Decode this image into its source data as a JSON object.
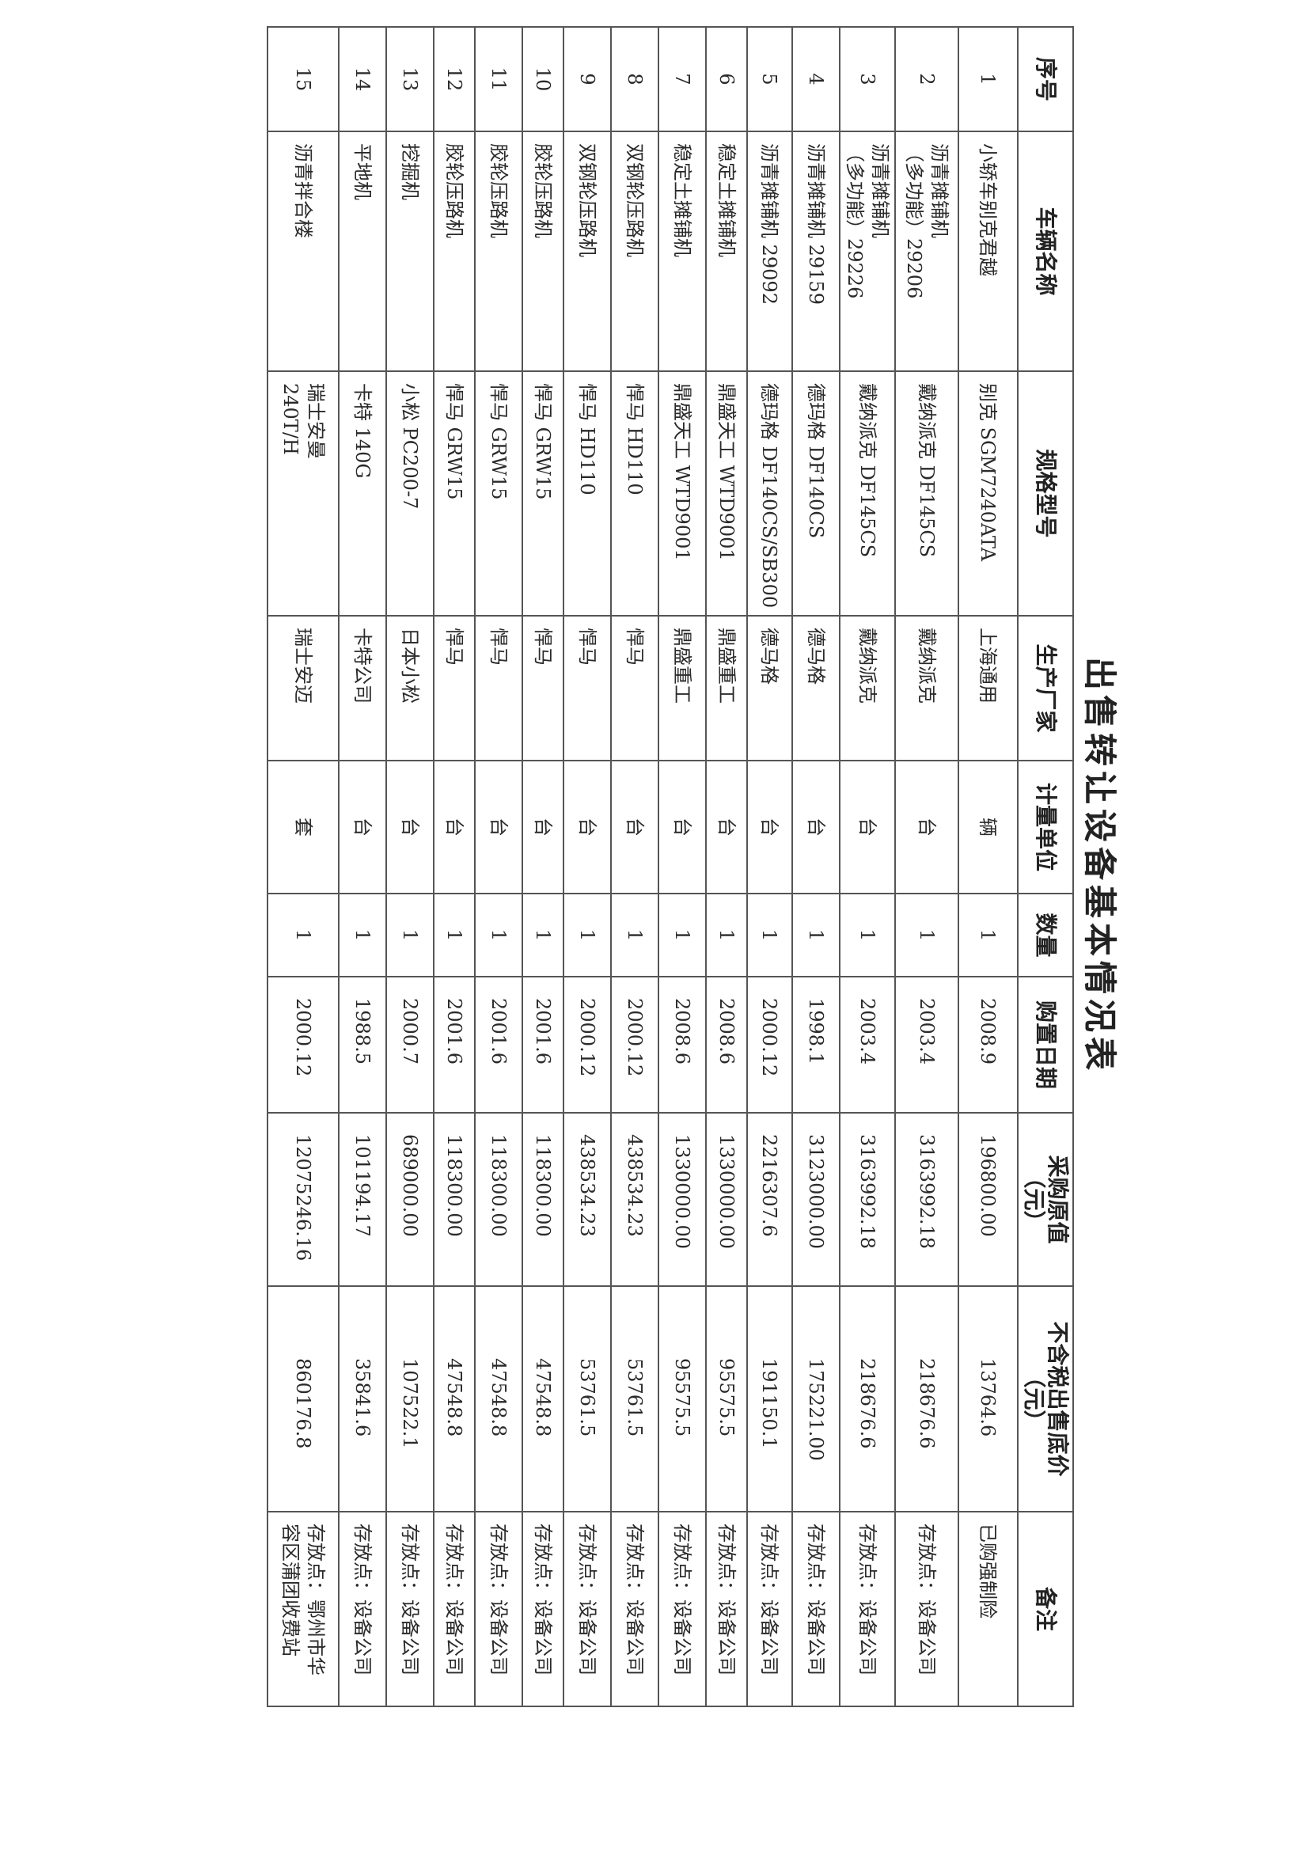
{
  "title": "出售转让设备基本情况表",
  "columns": [
    "序号",
    "车辆名称",
    "规格型号",
    "生产厂家",
    "计量单位",
    "数量",
    "购置日期",
    "采购原值\n（元）",
    "不含税出售底价\n（元）",
    "备注"
  ],
  "rows": [
    {
      "no": "1",
      "name": "小轿车别克君越",
      "spec": "别克 SGM7240ATA",
      "maker": "上海通用",
      "unit": "辆",
      "qty": "1",
      "date": "2008.9",
      "cost": "196800.00",
      "price": "13764.6",
      "note": "已购强制险"
    },
    {
      "no": "2",
      "name": "沥青摊铺机\n（多功能）29206",
      "spec": "戴纳派克 DF145CS",
      "maker": "戴纳派克",
      "unit": "台",
      "qty": "1",
      "date": "2003.4",
      "cost": "3163992.18",
      "price": "218676.6",
      "note": "存放点：设备公司"
    },
    {
      "no": "3",
      "name": "沥青摊铺机\n（多功能）29226",
      "spec": "戴纳派克 DF145CS",
      "maker": "戴纳派克",
      "unit": "台",
      "qty": "1",
      "date": "2003.4",
      "cost": "3163992.18",
      "price": "218676.6",
      "note": "存放点：设备公司"
    },
    {
      "no": "4",
      "name": "沥青摊铺机 29159",
      "spec": "德玛格 DF140CS",
      "maker": "德马格",
      "unit": "台",
      "qty": "1",
      "date": "1998.1",
      "cost": "3123000.00",
      "price": "175221.00",
      "note": "存放点：设备公司"
    },
    {
      "no": "5",
      "name": "沥青摊铺机 29092",
      "spec": "德玛格 DF140CS/SB300",
      "maker": "德马格",
      "unit": "台",
      "qty": "1",
      "date": "2000.12",
      "cost": "2216307.6",
      "price": "191150.1",
      "note": "存放点：设备公司"
    },
    {
      "no": "6",
      "name": "稳定土摊铺机",
      "spec": "鼎盛天工 WTD9001",
      "maker": "鼎盛重工",
      "unit": "台",
      "qty": "1",
      "date": "2008.6",
      "cost": "1330000.00",
      "price": "95575.5",
      "note": "存放点：设备公司"
    },
    {
      "no": "7",
      "name": "稳定土摊铺机",
      "spec": "鼎盛天工 WTD9001",
      "maker": "鼎盛重工",
      "unit": "台",
      "qty": "1",
      "date": "2008.6",
      "cost": "1330000.00",
      "price": "95575.5",
      "note": "存放点：设备公司"
    },
    {
      "no": "8",
      "name": "双钢轮压路机",
      "spec": "悍马 HD110",
      "maker": "悍马",
      "unit": "台",
      "qty": "1",
      "date": "2000.12",
      "cost": "438534.23",
      "price": "53761.5",
      "note": "存放点：设备公司"
    },
    {
      "no": "9",
      "name": "双钢轮压路机",
      "spec": "悍马 HD110",
      "maker": "悍马",
      "unit": "台",
      "qty": "1",
      "date": "2000.12",
      "cost": "438534.23",
      "price": "53761.5",
      "note": "存放点：设备公司"
    },
    {
      "no": "10",
      "name": "胶轮压路机",
      "spec": "悍马 GRW15",
      "maker": "悍马",
      "unit": "台",
      "qty": "1",
      "date": "2001.6",
      "cost": "118300.00",
      "price": "47548.8",
      "note": "存放点：设备公司"
    },
    {
      "no": "11",
      "name": "胶轮压路机",
      "spec": "悍马 GRW15",
      "maker": "悍马",
      "unit": "台",
      "qty": "1",
      "date": "2001.6",
      "cost": "118300.00",
      "price": "47548.8",
      "note": "存放点：设备公司"
    },
    {
      "no": "12",
      "name": "胶轮压路机",
      "spec": "悍马 GRW15",
      "maker": "悍马",
      "unit": "台",
      "qty": "1",
      "date": "2001.6",
      "cost": "118300.00",
      "price": "47548.8",
      "note": "存放点：设备公司"
    },
    {
      "no": "13",
      "name": "挖掘机",
      "spec": "小松 PC200-7",
      "maker": "日本小松",
      "unit": "台",
      "qty": "1",
      "date": "2000.7",
      "cost": "689000.00",
      "price": "107522.1",
      "note": "存放点：设备公司"
    },
    {
      "no": "14",
      "name": "平地机",
      "spec": "卡特 140G",
      "maker": "卡特公司",
      "unit": "台",
      "qty": "1",
      "date": "1988.5",
      "cost": "101194.17",
      "price": "35841.6",
      "note": "存放点：设备公司"
    },
    {
      "no": "15",
      "name": "沥青拌合楼",
      "spec": "瑞士安曼\n240T/H",
      "maker": "瑞士安迈",
      "unit": "套",
      "qty": "1",
      "date": "2000.12",
      "cost": "12075246.16",
      "price": "860176.8",
      "note": "存放点：鄂州市华\n容区蒲团收费站"
    }
  ]
}
